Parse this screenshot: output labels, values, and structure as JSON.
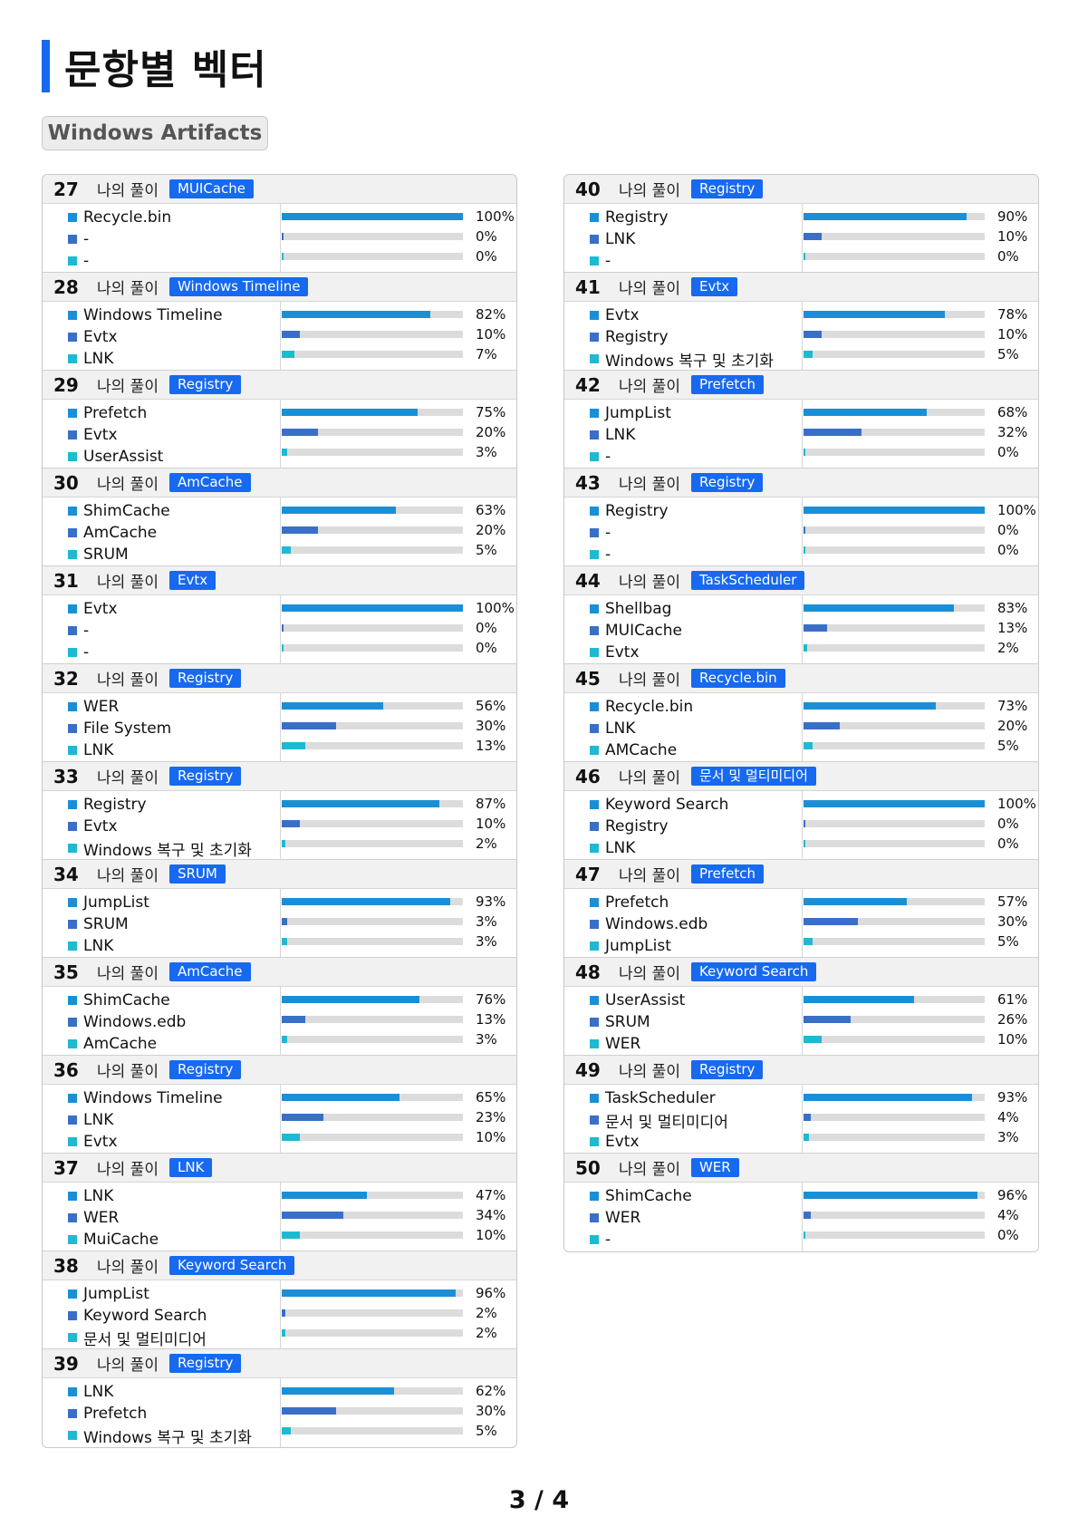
{
  "title": "문항별 벡터",
  "section": "Windows Artifacts",
  "my_answer_label": "나의 풀이",
  "colors": {
    "accent": "#1769f0",
    "bar1": "#1b8fd6",
    "bar2": "#3a6fc7",
    "bar3": "#1fb9d1",
    "track": "#dcdcdc"
  },
  "left": [
    {
      "num": "27",
      "tag": "MUICache",
      "rows": [
        {
          "label": "Recycle.bin",
          "pct": "100%",
          "value": 100
        },
        {
          "label": "-",
          "pct": "0%",
          "value": 0
        },
        {
          "label": "-",
          "pct": "0%",
          "value": 0
        }
      ]
    },
    {
      "num": "28",
      "tag": "Windows Timeline",
      "rows": [
        {
          "label": "Windows Timeline",
          "pct": "82%",
          "value": 82
        },
        {
          "label": "Evtx",
          "pct": "10%",
          "value": 10
        },
        {
          "label": "LNK",
          "pct": "7%",
          "value": 7
        }
      ]
    },
    {
      "num": "29",
      "tag": "Registry",
      "rows": [
        {
          "label": "Prefetch",
          "pct": "75%",
          "value": 75
        },
        {
          "label": "Evtx",
          "pct": "20%",
          "value": 20
        },
        {
          "label": "UserAssist",
          "pct": "3%",
          "value": 3
        }
      ]
    },
    {
      "num": "30",
      "tag": "AmCache",
      "rows": [
        {
          "label": "ShimCache",
          "pct": "63%",
          "value": 63
        },
        {
          "label": "AmCache",
          "pct": "20%",
          "value": 20
        },
        {
          "label": "SRUM",
          "pct": "5%",
          "value": 5
        }
      ]
    },
    {
      "num": "31",
      "tag": "Evtx",
      "rows": [
        {
          "label": "Evtx",
          "pct": "100%",
          "value": 100
        },
        {
          "label": "-",
          "pct": "0%",
          "value": 0
        },
        {
          "label": "-",
          "pct": "0%",
          "value": 0
        }
      ]
    },
    {
      "num": "32",
      "tag": "Registry",
      "rows": [
        {
          "label": "WER",
          "pct": "56%",
          "value": 56
        },
        {
          "label": "File System",
          "pct": "30%",
          "value": 30
        },
        {
          "label": "LNK",
          "pct": "13%",
          "value": 13
        }
      ]
    },
    {
      "num": "33",
      "tag": "Registry",
      "rows": [
        {
          "label": "Registry",
          "pct": "87%",
          "value": 87
        },
        {
          "label": "Evtx",
          "pct": "10%",
          "value": 10
        },
        {
          "label": "Windows 복구 및 초기화",
          "pct": "2%",
          "value": 2
        }
      ]
    },
    {
      "num": "34",
      "tag": "SRUM",
      "rows": [
        {
          "label": "JumpList",
          "pct": "93%",
          "value": 93
        },
        {
          "label": "SRUM",
          "pct": "3%",
          "value": 3
        },
        {
          "label": "LNK",
          "pct": "3%",
          "value": 3
        }
      ]
    },
    {
      "num": "35",
      "tag": "AmCache",
      "rows": [
        {
          "label": "ShimCache",
          "pct": "76%",
          "value": 76
        },
        {
          "label": "Windows.edb",
          "pct": "13%",
          "value": 13
        },
        {
          "label": "AmCache",
          "pct": "3%",
          "value": 3
        }
      ]
    },
    {
      "num": "36",
      "tag": "Registry",
      "rows": [
        {
          "label": "Windows Timeline",
          "pct": "65%",
          "value": 65
        },
        {
          "label": "LNK",
          "pct": "23%",
          "value": 23
        },
        {
          "label": "Evtx",
          "pct": "10%",
          "value": 10
        }
      ]
    },
    {
      "num": "37",
      "tag": "LNK",
      "rows": [
        {
          "label": "LNK",
          "pct": "47%",
          "value": 47
        },
        {
          "label": "WER",
          "pct": "34%",
          "value": 34
        },
        {
          "label": "MuiCache",
          "pct": "10%",
          "value": 10
        }
      ]
    },
    {
      "num": "38",
      "tag": "Keyword Search",
      "rows": [
        {
          "label": "JumpList",
          "pct": "96%",
          "value": 96
        },
        {
          "label": "Keyword Search",
          "pct": "2%",
          "value": 2
        },
        {
          "label": "문서 및 멀티미디어",
          "pct": "2%",
          "value": 2
        }
      ]
    },
    {
      "num": "39",
      "tag": "Registry",
      "rows": [
        {
          "label": "LNK",
          "pct": "62%",
          "value": 62
        },
        {
          "label": "Prefetch",
          "pct": "30%",
          "value": 30
        },
        {
          "label": "Windows 복구 및 초기화",
          "pct": "5%",
          "value": 5
        }
      ]
    }
  ],
  "right": [
    {
      "num": "40",
      "tag": "Registry",
      "rows": [
        {
          "label": "Registry",
          "pct": "90%",
          "value": 90
        },
        {
          "label": "LNK",
          "pct": "10%",
          "value": 10
        },
        {
          "label": "-",
          "pct": "0%",
          "value": 0
        }
      ]
    },
    {
      "num": "41",
      "tag": "Evtx",
      "rows": [
        {
          "label": "Evtx",
          "pct": "78%",
          "value": 78
        },
        {
          "label": "Registry",
          "pct": "10%",
          "value": 10
        },
        {
          "label": "Windows 복구 및 초기화",
          "pct": "5%",
          "value": 5
        }
      ]
    },
    {
      "num": "42",
      "tag": "Prefetch",
      "rows": [
        {
          "label": "JumpList",
          "pct": "68%",
          "value": 68
        },
        {
          "label": "LNK",
          "pct": "32%",
          "value": 32
        },
        {
          "label": "-",
          "pct": "0%",
          "value": 0
        }
      ]
    },
    {
      "num": "43",
      "tag": "Registry",
      "rows": [
        {
          "label": "Registry",
          "pct": "100%",
          "value": 100
        },
        {
          "label": "-",
          "pct": "0%",
          "value": 0
        },
        {
          "label": "-",
          "pct": "0%",
          "value": 0
        }
      ]
    },
    {
      "num": "44",
      "tag": "TaskScheduler",
      "rows": [
        {
          "label": "Shellbag",
          "pct": "83%",
          "value": 83
        },
        {
          "label": "MUICache",
          "pct": "13%",
          "value": 13
        },
        {
          "label": "Evtx",
          "pct": "2%",
          "value": 2
        }
      ]
    },
    {
      "num": "45",
      "tag": "Recycle.bin",
      "rows": [
        {
          "label": "Recycle.bin",
          "pct": "73%",
          "value": 73
        },
        {
          "label": "LNK",
          "pct": "20%",
          "value": 20
        },
        {
          "label": "AMCache",
          "pct": "5%",
          "value": 5
        }
      ]
    },
    {
      "num": "46",
      "tag": "문서 및 멀티미디어",
      "rows": [
        {
          "label": "Keyword Search",
          "pct": "100%",
          "value": 100
        },
        {
          "label": "Registry",
          "pct": "0%",
          "value": 0
        },
        {
          "label": "LNK",
          "pct": "0%",
          "value": 0
        }
      ]
    },
    {
      "num": "47",
      "tag": "Prefetch",
      "rows": [
        {
          "label": "Prefetch",
          "pct": "57%",
          "value": 57
        },
        {
          "label": "Windows.edb",
          "pct": "30%",
          "value": 30
        },
        {
          "label": "JumpList",
          "pct": "5%",
          "value": 5
        }
      ]
    },
    {
      "num": "48",
      "tag": "Keyword Search",
      "rows": [
        {
          "label": "UserAssist",
          "pct": "61%",
          "value": 61
        },
        {
          "label": "SRUM",
          "pct": "26%",
          "value": 26
        },
        {
          "label": "WER",
          "pct": "10%",
          "value": 10
        }
      ]
    },
    {
      "num": "49",
      "tag": "Registry",
      "rows": [
        {
          "label": "TaskScheduler",
          "pct": "93%",
          "value": 93
        },
        {
          "label": "문서 및 멀티미디어",
          "pct": "4%",
          "value": 4
        },
        {
          "label": "Evtx",
          "pct": "3%",
          "value": 3
        }
      ]
    },
    {
      "num": "50",
      "tag": "WER",
      "rows": [
        {
          "label": "ShimCache",
          "pct": "96%",
          "value": 96
        },
        {
          "label": "WER",
          "pct": "4%",
          "value": 4
        },
        {
          "label": "-",
          "pct": "0%",
          "value": 0
        }
      ]
    }
  ],
  "page": "3 / 4"
}
